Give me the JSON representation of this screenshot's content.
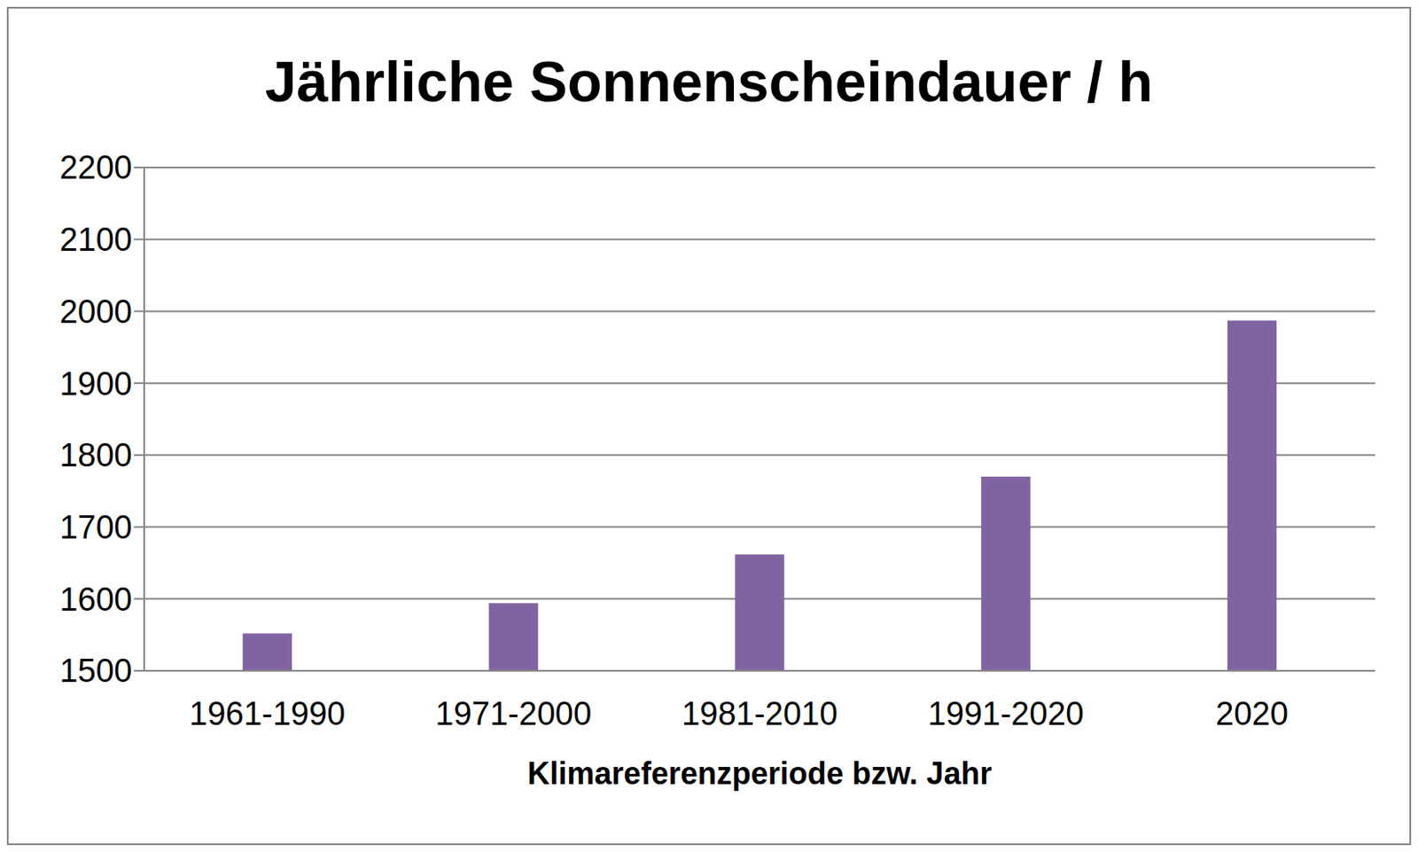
{
  "chart_data": {
    "type": "bar",
    "title": "Jährliche Sonnenscheindauer / h",
    "x_label": "Klimareferenzperiode bzw. Jahr",
    "categories": [
      "1961-1990",
      "1971-2000",
      "1981-2010",
      "1991-2020",
      "2020"
    ],
    "values": [
      1552,
      1594,
      1662,
      1770,
      1987
    ],
    "color": "#8064a2",
    "ylim": [
      1500,
      2200
    ],
    "yticks": [
      1500,
      1600,
      1700,
      1800,
      1900,
      2000,
      2100,
      2200
    ],
    "grid": true
  }
}
